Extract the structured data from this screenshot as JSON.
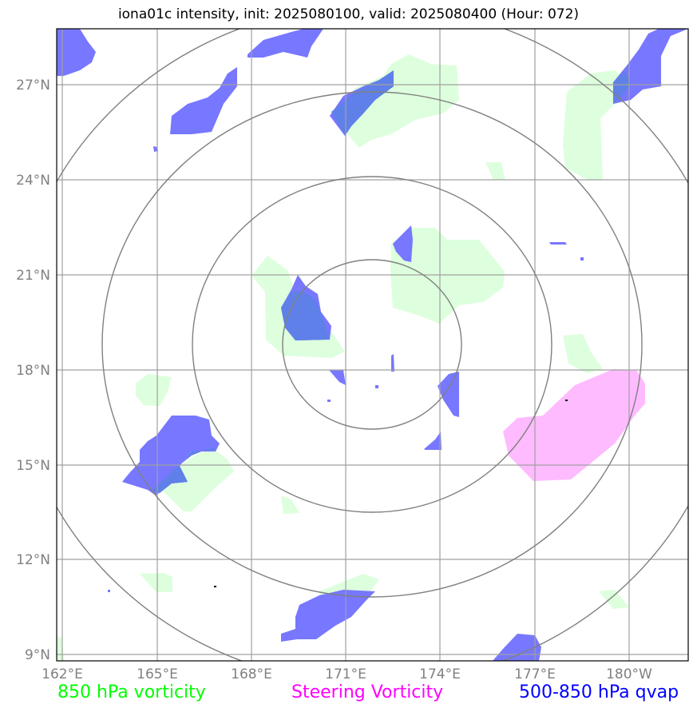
{
  "title": "iona01c intensity, init: 2025080100, valid: 2025080400 (Hour: 072)",
  "axes": {
    "lon_ticks": [
      "162°E",
      "165°E",
      "168°E",
      "171°E",
      "174°E",
      "177°E",
      "180°W"
    ],
    "lat_ticks": [
      "27°N",
      "24°N",
      "21°N",
      "18°N",
      "15°N",
      "12°N",
      "9°N"
    ]
  },
  "legend": [
    {
      "label": "850 hPa vorticity",
      "color": "#00ff00"
    },
    {
      "label": "Steering Vorticity",
      "color": "#ff00ff"
    },
    {
      "label": "500-850 hPa qvap",
      "color": "#0000ff"
    }
  ],
  "colors": {
    "vorticity_fill": "#ddffdd",
    "steering_fill": "#ffbbff",
    "qvap_fill": "#7777ff",
    "overlap_fill": "#5f80e8",
    "grid": "#a0a0a0",
    "range_rings": "#808080"
  }
}
